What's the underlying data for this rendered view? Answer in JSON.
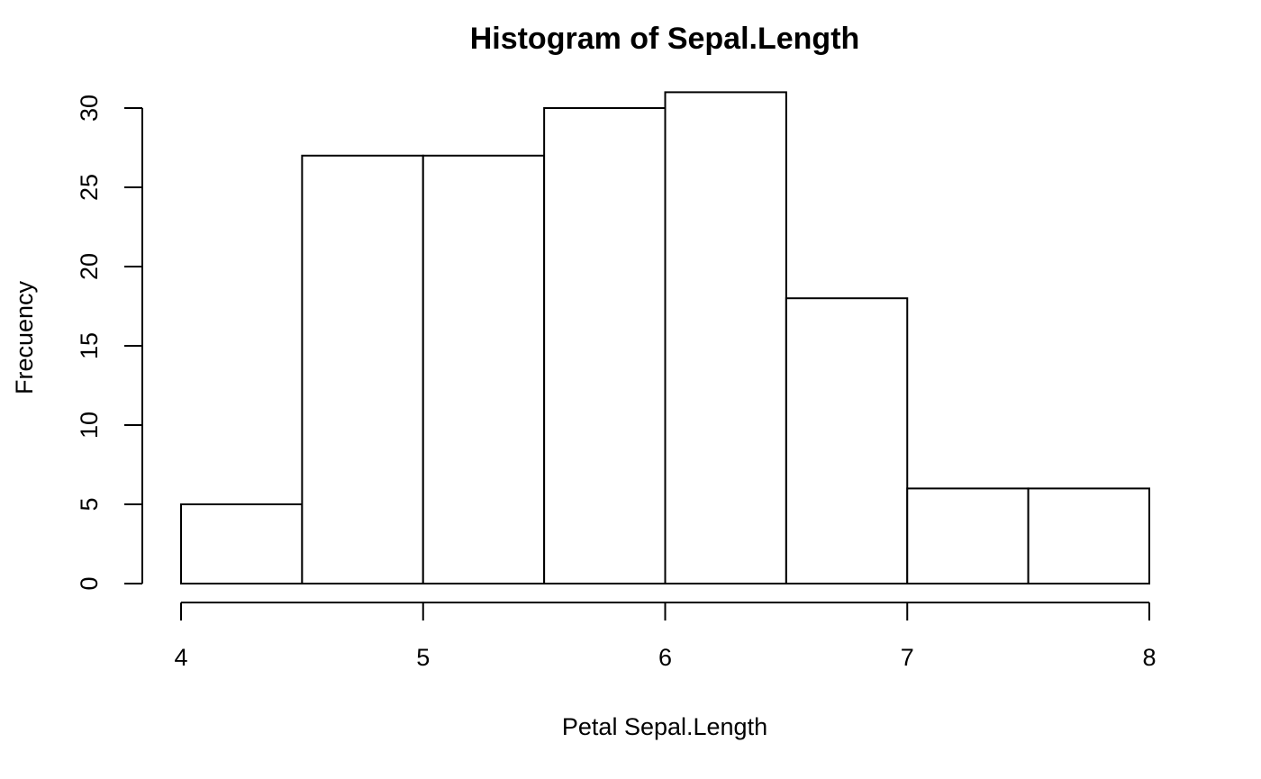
{
  "chart_data": {
    "type": "bar",
    "histogram": true,
    "title": "Histogram of Sepal.Length",
    "xlabel": "Petal Sepal.Length",
    "ylabel": "Frecuency",
    "bin_edges": [
      4,
      4.5,
      5,
      5.5,
      6,
      6.5,
      7,
      7.5,
      8
    ],
    "values": [
      5,
      27,
      27,
      30,
      31,
      18,
      6,
      6
    ],
    "xlim": [
      4,
      8
    ],
    "ylim": [
      0,
      31
    ],
    "x_ticks": [
      4,
      5,
      6,
      7,
      8
    ],
    "y_ticks": [
      0,
      5,
      10,
      15,
      20,
      25,
      30
    ],
    "grid": false,
    "colors": {
      "bar_fill": "#ffffff",
      "bar_stroke": "#000000"
    }
  }
}
